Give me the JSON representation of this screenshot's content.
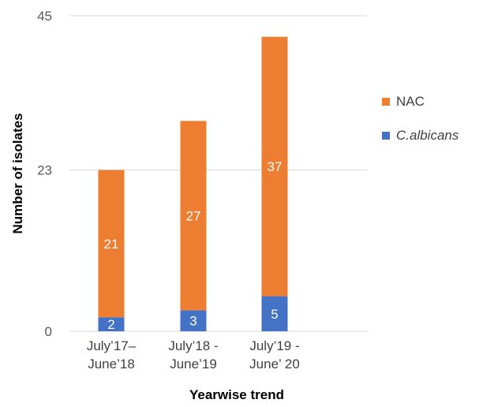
{
  "chart_data": {
    "type": "bar",
    "stacked": true,
    "categories": [
      [
        "July’17–",
        "June’18"
      ],
      [
        "July’18 -",
        "June’19"
      ],
      [
        "July’19 -",
        "June’ 20"
      ]
    ],
    "series": [
      {
        "name": "C.albicans",
        "values": [
          2,
          3,
          5
        ],
        "color": "#4472c4"
      },
      {
        "name": "NAC",
        "values": [
          21,
          27,
          37
        ],
        "color": "#ed7d31"
      }
    ],
    "xlabel": "Yearwise trend",
    "ylabel": "Number  of isolates",
    "ylim": [
      0,
      45
    ],
    "yticks": [
      0,
      23,
      45
    ],
    "grid": true,
    "legend_position": "right",
    "legend_order": [
      "NAC",
      "C.albicans"
    ],
    "legend_italic": [
      "C.albicans"
    ]
  }
}
